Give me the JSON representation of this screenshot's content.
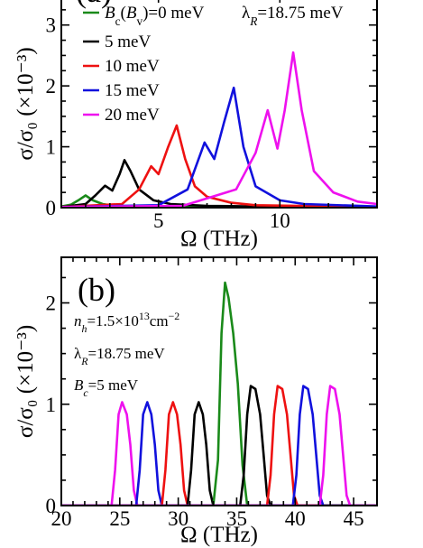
{
  "colors": {
    "green": "#1a8a1a",
    "black": "#000000",
    "red": "#ee1111",
    "blue": "#1111dd",
    "magenta": "#ee11ee"
  },
  "chart_data": [
    {
      "type": "line",
      "panel_label": "(a)",
      "xlabel": "Ω (THz)",
      "ylabel": "σ/σ₀ (×10⁻³)",
      "xlim": [
        1,
        14
      ],
      "ylim": [
        0,
        3.5
      ],
      "xticks": [
        5,
        10
      ],
      "xtick_labels": [
        "5",
        "10"
      ],
      "yticks": [
        0,
        1,
        2,
        3
      ],
      "ytick_labels": [
        "0",
        "1",
        "2",
        "3"
      ],
      "legend_labels": [
        "B_c(B_v)=0 meV",
        "5 meV",
        "10 meV",
        "15 meV",
        "20 meV"
      ],
      "legend_extra": "λ_R=18.75 meV",
      "series": [
        {
          "name": "B_c(B_v)=0 meV",
          "color": "green",
          "x": [
            1,
            1.4,
            1.7,
            2.0,
            2.3,
            2.7,
            3.2,
            4,
            5,
            8,
            14
          ],
          "y": [
            0.02,
            0.05,
            0.12,
            0.2,
            0.12,
            0.06,
            0.03,
            0.02,
            0.01,
            0.01,
            0.005
          ]
        },
        {
          "name": "5 meV",
          "color": "black",
          "x": [
            1,
            2.0,
            2.4,
            2.8,
            3.1,
            3.4,
            3.6,
            3.85,
            4.2,
            4.8,
            5.5,
            7,
            9,
            14
          ],
          "y": [
            0.01,
            0.06,
            0.2,
            0.36,
            0.28,
            0.55,
            0.78,
            0.6,
            0.3,
            0.12,
            0.06,
            0.03,
            0.02,
            0.01
          ]
        },
        {
          "name": "10 meV",
          "color": "red",
          "x": [
            1,
            3.5,
            4.2,
            4.7,
            5.0,
            5.4,
            5.75,
            6.1,
            6.5,
            7,
            8,
            9,
            14
          ],
          "y": [
            0.01,
            0.06,
            0.3,
            0.68,
            0.55,
            1.0,
            1.35,
            0.8,
            0.35,
            0.18,
            0.08,
            0.04,
            0.01
          ]
        },
        {
          "name": "15 meV",
          "color": "blue",
          "x": [
            1,
            5,
            6.2,
            6.9,
            7.3,
            7.7,
            8.1,
            8.5,
            9,
            10,
            11,
            14
          ],
          "y": [
            0.01,
            0.04,
            0.3,
            1.07,
            0.8,
            1.4,
            1.97,
            1.0,
            0.35,
            0.12,
            0.06,
            0.02
          ]
        },
        {
          "name": "20 meV",
          "color": "magenta",
          "x": [
            1,
            6,
            8.2,
            9.0,
            9.5,
            9.9,
            10.2,
            10.55,
            10.9,
            11.4,
            12.2,
            13.2,
            14
          ],
          "y": [
            0.01,
            0.03,
            0.3,
            0.9,
            1.6,
            0.97,
            1.6,
            2.55,
            1.6,
            0.6,
            0.25,
            0.1,
            0.06
          ]
        }
      ]
    },
    {
      "type": "line",
      "panel_label": "(b)",
      "xlabel": "Ω (THz)",
      "ylabel": "σ/σ₀ (×10⁻³)",
      "xlim": [
        20,
        47
      ],
      "ylim": [
        0,
        2.45
      ],
      "xticks": [
        20,
        25,
        30,
        35,
        40,
        45
      ],
      "xtick_labels": [
        "20",
        "25",
        "30",
        "35",
        "40",
        "45"
      ],
      "yticks": [
        0,
        1,
        2
      ],
      "ytick_labels": [
        "0",
        "1",
        "2"
      ],
      "annotations": [
        "n_h=1.5×10¹³cm⁻²",
        "λ_R=18.75 meV",
        "B_c=5 meV"
      ],
      "series": [
        {
          "color": "magenta",
          "x": [
            20,
            24.3,
            24.6,
            24.9,
            25.2,
            25.6,
            25.9,
            26.2,
            26.5,
            47
          ],
          "y": [
            0,
            0,
            0.35,
            0.9,
            1.02,
            0.9,
            0.6,
            0.15,
            0,
            0
          ]
        },
        {
          "color": "blue",
          "x": [
            20,
            26.4,
            26.7,
            27.0,
            27.35,
            27.7,
            28.0,
            28.3,
            28.6,
            47
          ],
          "y": [
            0,
            0,
            0.35,
            0.9,
            1.02,
            0.9,
            0.6,
            0.15,
            0,
            0
          ]
        },
        {
          "color": "red",
          "x": [
            20,
            28.6,
            28.9,
            29.2,
            29.55,
            29.9,
            30.2,
            30.5,
            30.8,
            47
          ],
          "y": [
            0,
            0,
            0.35,
            0.9,
            1.02,
            0.9,
            0.6,
            0.15,
            0,
            0
          ]
        },
        {
          "color": "black",
          "x": [
            20,
            30.8,
            31.1,
            31.4,
            31.75,
            32.1,
            32.4,
            32.7,
            33.0,
            47
          ],
          "y": [
            0,
            0,
            0.35,
            0.9,
            1.02,
            0.9,
            0.6,
            0.15,
            0,
            0
          ]
        },
        {
          "color": "green",
          "x": [
            20,
            33.0,
            33.4,
            33.7,
            34.0,
            34.3,
            34.7,
            35.1,
            35.5,
            35.9,
            47
          ],
          "y": [
            0,
            0,
            0.45,
            1.7,
            2.2,
            2.05,
            1.7,
            1.2,
            0.4,
            0,
            0
          ]
        },
        {
          "color": "black",
          "x": [
            20,
            35.3,
            35.6,
            35.9,
            36.2,
            36.6,
            37.0,
            37.3,
            37.6,
            37.9,
            47
          ],
          "y": [
            0,
            0,
            0.3,
            0.9,
            1.18,
            1.15,
            0.9,
            0.5,
            0.1,
            0,
            0
          ]
        },
        {
          "color": "red",
          "x": [
            20,
            37.6,
            37.9,
            38.2,
            38.5,
            38.9,
            39.3,
            39.6,
            39.9,
            40.2,
            47
          ],
          "y": [
            0,
            0,
            0.3,
            0.9,
            1.18,
            1.15,
            0.9,
            0.5,
            0.1,
            0,
            0
          ]
        },
        {
          "color": "blue",
          "x": [
            20,
            39.8,
            40.1,
            40.4,
            40.7,
            41.1,
            41.5,
            41.8,
            42.1,
            42.4,
            47
          ],
          "y": [
            0,
            0,
            0.3,
            0.9,
            1.18,
            1.15,
            0.9,
            0.5,
            0.1,
            0,
            0
          ]
        },
        {
          "color": "magenta",
          "x": [
            20,
            42.1,
            42.4,
            42.7,
            43.0,
            43.4,
            43.8,
            44.1,
            44.4,
            44.7,
            47
          ],
          "y": [
            0,
            0,
            0.3,
            0.9,
            1.18,
            1.15,
            0.9,
            0.5,
            0.1,
            0,
            0
          ]
        }
      ]
    }
  ]
}
